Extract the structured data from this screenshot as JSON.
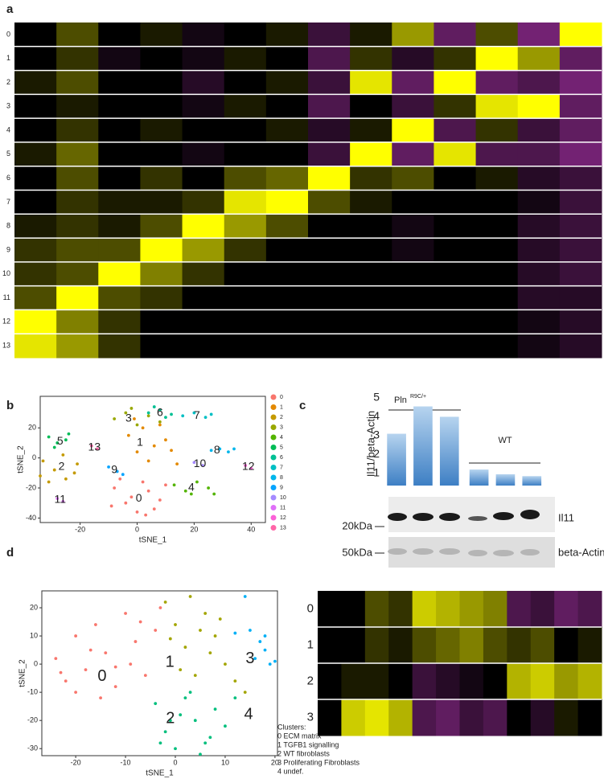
{
  "panels": [
    "a",
    "b",
    "c",
    "d"
  ],
  "chart_data": [
    {
      "type": "heatmap",
      "rows": [
        "0",
        "1",
        "2",
        "3",
        "4",
        "5",
        "6",
        "7",
        "8",
        "9",
        "10",
        "11",
        "12",
        "13"
      ],
      "columns": [
        null,
        null,
        null,
        null,
        null,
        null,
        null,
        null,
        null,
        null,
        null,
        null,
        null,
        null
      ],
      "zlim": [
        -1,
        1
      ],
      "colors": [
        "#c039c0",
        "#000000",
        "#ffff00"
      ],
      "values": [
        [
          0,
          0.3,
          0,
          0.1,
          -0.1,
          0,
          0.1,
          -0.3,
          0.1,
          0.6,
          -0.5,
          0.3,
          -0.6,
          1
        ],
        [
          0,
          0.2,
          -0.1,
          0,
          -0.1,
          0.1,
          0,
          -0.4,
          0.2,
          -0.2,
          0.2,
          1,
          0.6,
          -0.5
        ],
        [
          0.1,
          0.3,
          0,
          0,
          -0.2,
          0,
          0.1,
          -0.3,
          0.9,
          -0.5,
          1,
          -0.5,
          -0.4,
          -0.6
        ],
        [
          0,
          0.1,
          0,
          0,
          -0.1,
          0.1,
          0,
          -0.4,
          0,
          -0.3,
          0.2,
          0.9,
          1,
          -0.5
        ],
        [
          0,
          0.2,
          0,
          0.1,
          0,
          0,
          0.1,
          -0.2,
          0.1,
          1,
          -0.4,
          0.2,
          -0.3,
          -0.5
        ],
        [
          0.1,
          0.4,
          0,
          0,
          -0.1,
          0,
          0,
          -0.3,
          1,
          -0.5,
          0.9,
          -0.4,
          -0.4,
          -0.6
        ],
        [
          0,
          0.3,
          0,
          0.2,
          0,
          0.3,
          0.4,
          1,
          0.2,
          0.3,
          0,
          0.1,
          -0.2,
          -0.3
        ],
        [
          0,
          0.2,
          0.1,
          0.1,
          0.2,
          0.9,
          1,
          0.3,
          0.1,
          0,
          0,
          0,
          -0.1,
          -0.3
        ],
        [
          0.1,
          0.2,
          0.1,
          0.3,
          1,
          0.6,
          0.3,
          0,
          0,
          -0.1,
          0,
          0,
          -0.2,
          -0.3
        ],
        [
          0.2,
          0.3,
          0.3,
          1,
          0.6,
          0.2,
          0,
          0,
          0,
          -0.1,
          0,
          0,
          -0.2,
          -0.3
        ],
        [
          0.2,
          0.3,
          1,
          0.5,
          0.2,
          0,
          0,
          0,
          0,
          0,
          0,
          0,
          -0.2,
          -0.3
        ],
        [
          0.3,
          1,
          0.3,
          0.2,
          0,
          0,
          0,
          0,
          0,
          0,
          0,
          0,
          -0.2,
          -0.2
        ],
        [
          1,
          0.5,
          0.2,
          0,
          0,
          0,
          0,
          0,
          0,
          0,
          0,
          0,
          -0.1,
          -0.2
        ],
        [
          0.9,
          0.6,
          0.2,
          0,
          0,
          0,
          0,
          0,
          0,
          0,
          0,
          0,
          -0.1,
          -0.2
        ]
      ]
    },
    {
      "type": "scatter",
      "x_label": "tSNE_1",
      "y_label": "tSNE_2",
      "xlim": [
        -34,
        45
      ],
      "ylim": [
        -43,
        41
      ],
      "xticks": [
        -20,
        0,
        20,
        40
      ],
      "yticks": [
        -40,
        -20,
        0,
        20
      ],
      "legend": "right",
      "series": [
        {
          "name": "0",
          "color": "#F8766D",
          "label_xy": [
            0.6,
            -27
          ],
          "x": [
            -8,
            -4,
            0,
            4,
            8,
            -6,
            2,
            6,
            -2,
            10,
            -9,
            3
          ],
          "y": [
            -20,
            -30,
            -36,
            -22,
            -28,
            -14,
            -16,
            -34,
            -26,
            -18,
            -32,
            -38
          ]
        },
        {
          "name": "1",
          "color": "#E38900",
          "label_xy": [
            1,
            10
          ],
          "x": [
            -3,
            2,
            6,
            10,
            0,
            4,
            8,
            12,
            -1,
            14
          ],
          "y": [
            15,
            20,
            8,
            12,
            4,
            -2,
            22,
            5,
            26,
            -4
          ]
        },
        {
          "name": "2",
          "color": "#C49A00",
          "label_xy": [
            -26.5,
            -6
          ],
          "x": [
            -33,
            -29,
            -25,
            -21,
            -31,
            -26,
            -22,
            -34
          ],
          "y": [
            -2,
            -8,
            -14,
            -4,
            -16,
            2,
            -10,
            -12
          ]
        },
        {
          "name": "3",
          "color": "#99A800",
          "label_xy": [
            -3,
            26
          ],
          "x": [
            -8,
            -4,
            0,
            4,
            8,
            -2
          ],
          "y": [
            26,
            30,
            22,
            28,
            24,
            33
          ]
        },
        {
          "name": "4",
          "color": "#53B400",
          "label_xy": [
            19,
            -20
          ],
          "x": [
            13,
            17,
            21,
            25,
            27,
            19
          ],
          "y": [
            -18,
            -22,
            -16,
            -20,
            -24,
            -24
          ]
        },
        {
          "name": "5",
          "color": "#00BC56",
          "label_xy": [
            -27,
            11
          ],
          "x": [
            -31,
            -28,
            -25,
            -29,
            -24
          ],
          "y": [
            14,
            10,
            12,
            7,
            16
          ]
        },
        {
          "name": "6",
          "color": "#00C094",
          "label_xy": [
            8,
            30
          ],
          "x": [
            4,
            8,
            12,
            6,
            10
          ],
          "y": [
            30,
            32,
            29,
            34,
            27
          ]
        },
        {
          "name": "7",
          "color": "#00BFC4",
          "label_xy": [
            21,
            28
          ],
          "x": [
            16,
            20,
            24,
            26
          ],
          "y": [
            28,
            30,
            27,
            29
          ]
        },
        {
          "name": "8",
          "color": "#00B6EB",
          "label_xy": [
            28,
            5
          ],
          "x": [
            26,
            29,
            32,
            34
          ],
          "y": [
            5,
            6,
            4,
            6
          ]
        },
        {
          "name": "9",
          "color": "#06A4FF",
          "label_xy": [
            -8,
            -8
          ],
          "x": [
            -10,
            -7,
            -5
          ],
          "y": [
            -6,
            -9,
            -11
          ]
        },
        {
          "name": "10",
          "color": "#A58AFF",
          "label_xy": [
            22,
            -4
          ],
          "x": [
            20,
            23
          ],
          "y": [
            -3,
            -5
          ]
        },
        {
          "name": "11",
          "color": "#DF70F8",
          "label_xy": [
            -27,
            -28
          ],
          "x": [
            -28,
            -26
          ],
          "y": [
            -27,
            -29
          ]
        },
        {
          "name": "12",
          "color": "#FB61D7",
          "label_xy": [
            39,
            -6
          ],
          "x": [
            38,
            40
          ],
          "y": [
            -5,
            -7
          ]
        },
        {
          "name": "13",
          "color": "#FF66A8",
          "label_xy": [
            -15,
            7
          ],
          "x": [
            -16,
            -14
          ],
          "y": [
            8,
            6
          ]
        }
      ]
    },
    {
      "type": "bar",
      "y_label": "Il11/beta-Actin",
      "categories": [
        null,
        null,
        null,
        null,
        null,
        null
      ],
      "values": [
        3.1,
        4.55,
        4.0,
        1.2,
        0.95,
        0.85
      ],
      "color": "#5b9bd5",
      "ylim": [
        0.35,
        5
      ],
      "yticks": [
        1,
        2,
        3,
        4,
        5
      ],
      "groups": [
        "Pln",
        "R9C/+",
        "WT"
      ],
      "blot_labels": [
        "Il11",
        "beta-Actin"
      ],
      "markers": [
        "20kDa",
        "50kDa"
      ]
    },
    {
      "type": "scatter",
      "x_label": "tSNE_1",
      "y_label": "tSNE_2",
      "xlim": [
        -26.8,
        20.5
      ],
      "ylim": [
        -32.5,
        26
      ],
      "xticks": [
        -20,
        -10,
        0,
        10,
        20
      ],
      "yticks": [
        -30,
        -20,
        -10,
        0,
        10,
        20
      ],
      "notes": [
        "Clusters:",
        "0 ECM matrix",
        "1 TGFB1 signalling",
        "2 WT fibroblasts",
        "3 Proliferating Fibroblasts",
        "4 undef."
      ],
      "series": [
        {
          "name": "0",
          "color": "#F8766D",
          "label_xy": [
            -14.7,
            -4.4
          ],
          "x": [
            -24,
            -22,
            -20,
            -18,
            -16,
            -14,
            -12,
            -10,
            -8,
            -6,
            -4,
            -20,
            -15,
            -9,
            -3,
            -12,
            -17,
            -23,
            -7
          ],
          "y": [
            2,
            -6,
            10,
            -2,
            14,
            4,
            -8,
            18,
            8,
            -4,
            12,
            -10,
            -12,
            0,
            20,
            -1,
            5,
            -3,
            15
          ]
        },
        {
          "name": "1",
          "color": "#A3A500",
          "label_xy": [
            -1.1,
            0.6
          ],
          "x": [
            -2,
            0,
            2,
            4,
            6,
            8,
            10,
            12,
            14,
            3,
            7,
            1,
            5,
            9,
            -1
          ],
          "y": [
            22,
            14,
            6,
            -4,
            18,
            10,
            0,
            -6,
            -10,
            24,
            4,
            -2,
            12,
            16,
            9
          ]
        },
        {
          "name": "2",
          "color": "#00BF7D",
          "label_xy": [
            -1,
            -19.5
          ],
          "x": [
            -4,
            -2,
            0,
            2,
            4,
            6,
            8,
            10,
            12,
            1,
            5,
            -1,
            7,
            3,
            -3
          ],
          "y": [
            -14,
            -24,
            -30,
            -12,
            -20,
            -28,
            -16,
            -22,
            -12,
            -18,
            -32,
            -20,
            -26,
            -10,
            -28
          ]
        },
        {
          "name": "3",
          "color": "#00B0F6",
          "label_xy": [
            15,
            1.8
          ],
          "x": [
            12,
            15,
            17,
            18,
            16,
            19,
            20,
            14,
            18
          ],
          "y": [
            11,
            12,
            8,
            5,
            2,
            0,
            1,
            24,
            10
          ]
        },
        {
          "name": "4",
          "color": "#E76BF3",
          "label_xy": [
            14.7,
            -18
          ],
          "x": [],
          "y": []
        }
      ]
    },
    {
      "type": "heatmap",
      "rows": [
        "0",
        "1",
        "2",
        "3"
      ],
      "columns": [
        null,
        null,
        null,
        null,
        null,
        null,
        null,
        null,
        null,
        null,
        null,
        null
      ],
      "zlim": [
        -1,
        1
      ],
      "colors": [
        "#c039c0",
        "#000000",
        "#ffff00"
      ],
      "values": [
        [
          0,
          0,
          0.3,
          0.2,
          0.8,
          0.7,
          0.6,
          0.5,
          -0.4,
          -0.3,
          -0.5,
          -0.4
        ],
        [
          0,
          0,
          0.2,
          0.1,
          0.3,
          0.4,
          0.5,
          0.3,
          0.2,
          0.3,
          0,
          0.1
        ],
        [
          0,
          0.1,
          0.1,
          0,
          -0.3,
          -0.2,
          -0.1,
          0,
          0.7,
          0.8,
          0.6,
          0.7
        ],
        [
          0,
          0.8,
          0.9,
          0.7,
          -0.4,
          -0.5,
          -0.3,
          -0.4,
          0,
          -0.2,
          0.1,
          0
        ]
      ]
    }
  ]
}
